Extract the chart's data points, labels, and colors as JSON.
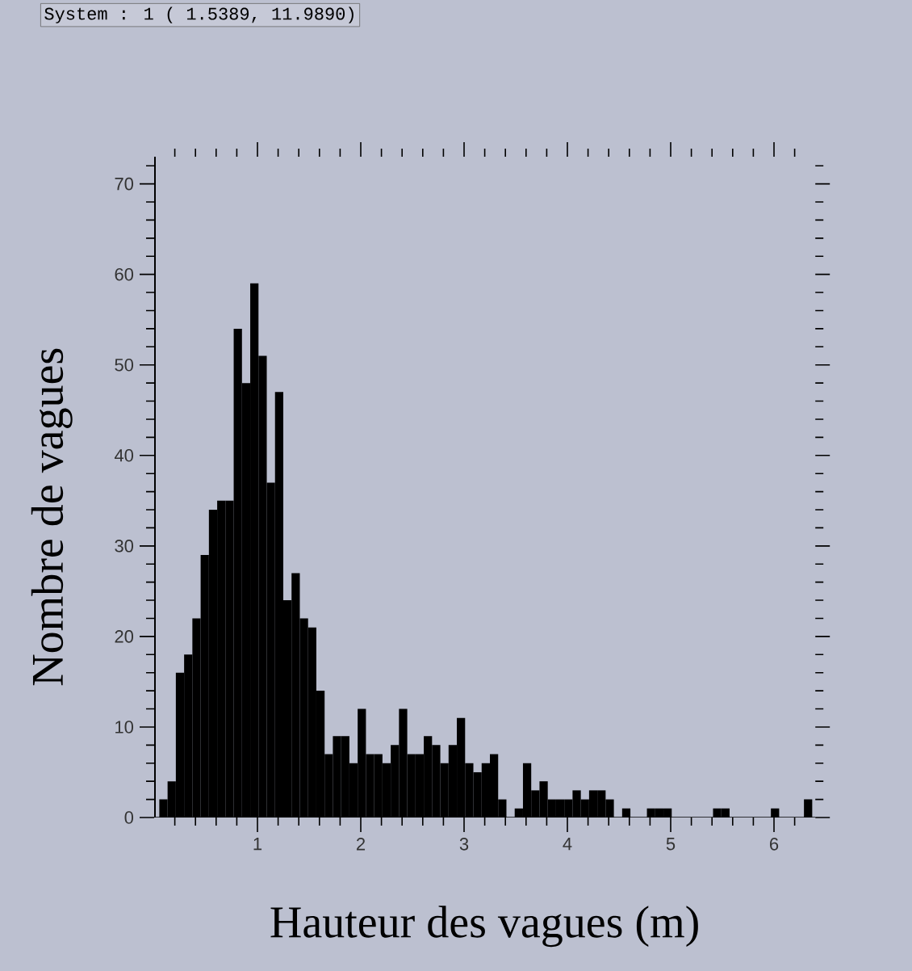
{
  "chart_data": {
    "type": "histogram",
    "annotations": [
      "System : 1 ( 1.5389, 11.9890)"
    ],
    "xlabel": "Hauteur des vagues (m)",
    "ylabel": "Nombre de vagues",
    "color": "#000000",
    "bins": [
      0.05,
      0.13,
      0.21,
      0.29,
      0.37,
      0.45,
      0.53,
      0.61,
      0.69,
      0.77,
      0.85,
      0.93,
      1.01,
      1.09,
      1.17,
      1.25,
      1.33,
      1.41,
      1.49,
      1.57,
      1.65,
      1.73,
      1.81,
      1.89,
      1.97,
      2.05,
      2.13,
      2.21,
      2.29,
      2.37,
      2.45,
      2.53,
      2.61,
      2.69,
      2.77,
      2.85,
      2.93,
      3.01,
      3.09,
      3.17,
      3.25,
      3.33,
      3.41,
      3.49,
      3.57,
      3.65,
      3.73,
      3.81,
      3.89,
      3.97,
      4.05,
      4.13,
      4.21,
      4.29,
      4.37,
      4.45,
      4.53,
      4.61,
      4.69,
      4.77,
      4.85,
      4.93,
      5.01,
      5.09,
      5.17,
      5.25,
      5.33,
      5.41,
      5.49,
      5.57,
      5.65,
      5.73,
      5.81,
      5.89,
      5.97,
      6.05,
      6.13,
      6.21,
      6.29,
      6.37
    ],
    "values": [
      2,
      4,
      16,
      18,
      22,
      29,
      34,
      35,
      35,
      54,
      48,
      59,
      51,
      37,
      47,
      24,
      27,
      22,
      21,
      14,
      7,
      9,
      9,
      6,
      12,
      7,
      7,
      6,
      8,
      12,
      7,
      7,
      9,
      8,
      6,
      8,
      11,
      6,
      5,
      6,
      7,
      2,
      0,
      1,
      6,
      3,
      4,
      2,
      2,
      2,
      3,
      2,
      3,
      3,
      2,
      0,
      1,
      0,
      0,
      1,
      1,
      1,
      0,
      0,
      0,
      0,
      0,
      1,
      1,
      0,
      0,
      0,
      0,
      0,
      1,
      0,
      0,
      0,
      2
    ],
    "xlim": [
      0,
      6.4
    ],
    "ylim": [
      0,
      73
    ],
    "xticks": [
      {
        "value": 0.2,
        "label": null
      },
      {
        "value": 0.4,
        "label": null
      },
      {
        "value": 0.6,
        "label": null
      },
      {
        "value": 0.8,
        "label": null
      },
      1,
      {
        "value": 1.2,
        "label": null
      },
      {
        "value": 1.4,
        "label": null
      },
      {
        "value": 1.6,
        "label": null
      },
      {
        "value": 1.8,
        "label": null
      },
      2,
      {
        "value": 2.2,
        "label": null
      },
      {
        "value": 2.4,
        "label": null
      },
      {
        "value": 2.6,
        "label": null
      },
      {
        "value": 2.8,
        "label": null
      },
      3,
      {
        "value": 3.2,
        "label": null
      },
      {
        "value": 3.4,
        "label": null
      },
      {
        "value": 3.6,
        "label": null
      },
      {
        "value": 3.8,
        "label": null
      },
      4,
      {
        "value": 4.2,
        "label": null
      },
      {
        "value": 4.4,
        "label": null
      },
      {
        "value": 4.6,
        "label": null
      },
      {
        "value": 4.8,
        "label": null
      },
      5,
      {
        "value": 5.2,
        "label": null
      },
      {
        "value": 5.4,
        "label": null
      },
      {
        "value": 5.6,
        "label": null
      },
      {
        "value": 5.8,
        "label": null
      },
      6,
      {
        "value": 6.2,
        "label": null
      }
    ],
    "yticks": [
      0,
      {
        "value": 2,
        "label": null
      },
      {
        "value": 4,
        "label": null
      },
      {
        "value": 6,
        "label": null
      },
      {
        "value": 8,
        "label": null
      },
      10,
      {
        "value": 12,
        "label": null
      },
      {
        "value": 14,
        "label": null
      },
      {
        "value": 16,
        "label": null
      },
      {
        "value": 18,
        "label": null
      },
      20,
      {
        "value": 22,
        "label": null
      },
      {
        "value": 24,
        "label": null
      },
      {
        "value": 26,
        "label": null
      },
      {
        "value": 28,
        "label": null
      },
      30,
      {
        "value": 32,
        "label": null
      },
      {
        "value": 34,
        "label": null
      },
      {
        "value": 36,
        "label": null
      },
      {
        "value": 38,
        "label": null
      },
      40,
      {
        "value": 42,
        "label": null
      },
      {
        "value": 44,
        "label": null
      },
      {
        "value": 46,
        "label": null
      },
      {
        "value": 48,
        "label": null
      },
      50,
      {
        "value": 52,
        "label": null
      },
      {
        "value": 54,
        "label": null
      },
      {
        "value": 56,
        "label": null
      },
      {
        "value": 58,
        "label": null
      },
      60,
      {
        "value": 62,
        "label": null
      },
      {
        "value": 64,
        "label": null
      },
      {
        "value": 66,
        "label": null
      },
      {
        "value": 68,
        "label": null
      },
      70,
      {
        "value": 72,
        "label": null
      }
    ],
    "tick_labels": true
  }
}
